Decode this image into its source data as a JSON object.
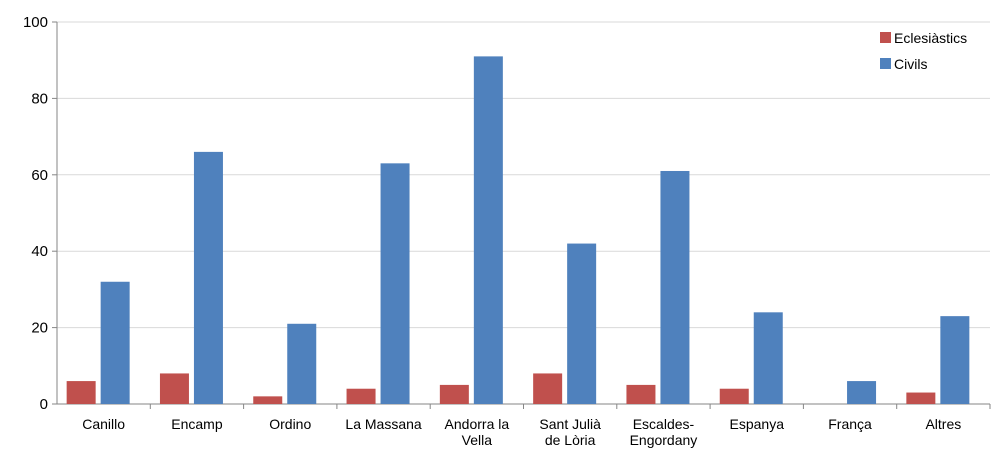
{
  "chart_data": {
    "type": "bar",
    "title": "",
    "xlabel": "",
    "ylabel": "",
    "ylim": [
      0,
      100
    ],
    "yticks": [
      0,
      20,
      40,
      60,
      80,
      100
    ],
    "grid": true,
    "legend_position": "top-right",
    "categories": [
      [
        "Canillo"
      ],
      [
        "Encamp"
      ],
      [
        "Ordino"
      ],
      [
        "La Massana"
      ],
      [
        "Andorra la",
        "Vella"
      ],
      [
        "Sant Julià",
        "de Lòria"
      ],
      [
        "Escaldes-",
        "Engordany"
      ],
      [
        "Espanya"
      ],
      [
        "França"
      ],
      [
        "Altres"
      ]
    ],
    "series": [
      {
        "name": "Eclesiàstics",
        "color": "#c0504d",
        "values": [
          6,
          8,
          2,
          4,
          5,
          8,
          5,
          4,
          0,
          3
        ]
      },
      {
        "name": "Civils",
        "color": "#4f81bd",
        "values": [
          32,
          66,
          21,
          63,
          91,
          42,
          61,
          24,
          6,
          23
        ]
      }
    ]
  }
}
